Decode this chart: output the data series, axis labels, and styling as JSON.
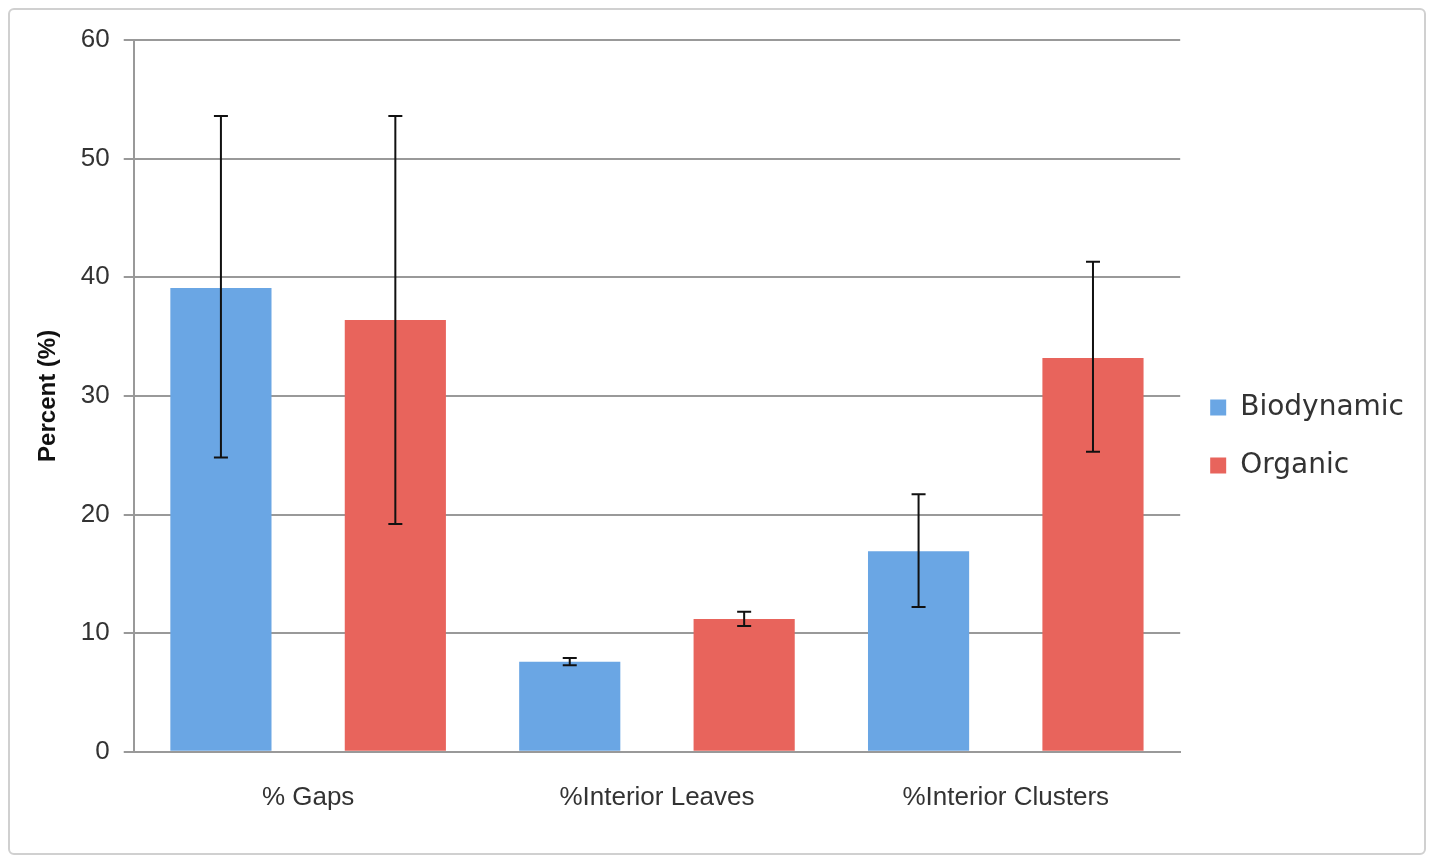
{
  "chart_data": {
    "type": "bar",
    "ylabel": "Percent (%)",
    "categories": [
      "% Gaps",
      "%Interior Leaves",
      "%Interior Clusters"
    ],
    "series": [
      {
        "name": "Biodynamic",
        "color": "#6aa6e4",
        "values": [
          39.1,
          7.6,
          16.9
        ],
        "errors": [
          [
            24.8,
            53.6
          ],
          [
            7.3,
            7.9
          ],
          [
            12.2,
            21.7
          ]
        ]
      },
      {
        "name": "Organic",
        "color": "#e8645c",
        "values": [
          36.4,
          11.2,
          33.2
        ],
        "errors": [
          [
            19.2,
            53.6
          ],
          [
            10.6,
            11.8
          ],
          [
            25.3,
            41.3
          ]
        ]
      }
    ],
    "ylim": [
      0,
      60
    ],
    "yticks": [
      0,
      10,
      20,
      30,
      40,
      50,
      60
    ],
    "grid": "y",
    "legend": "right"
  }
}
